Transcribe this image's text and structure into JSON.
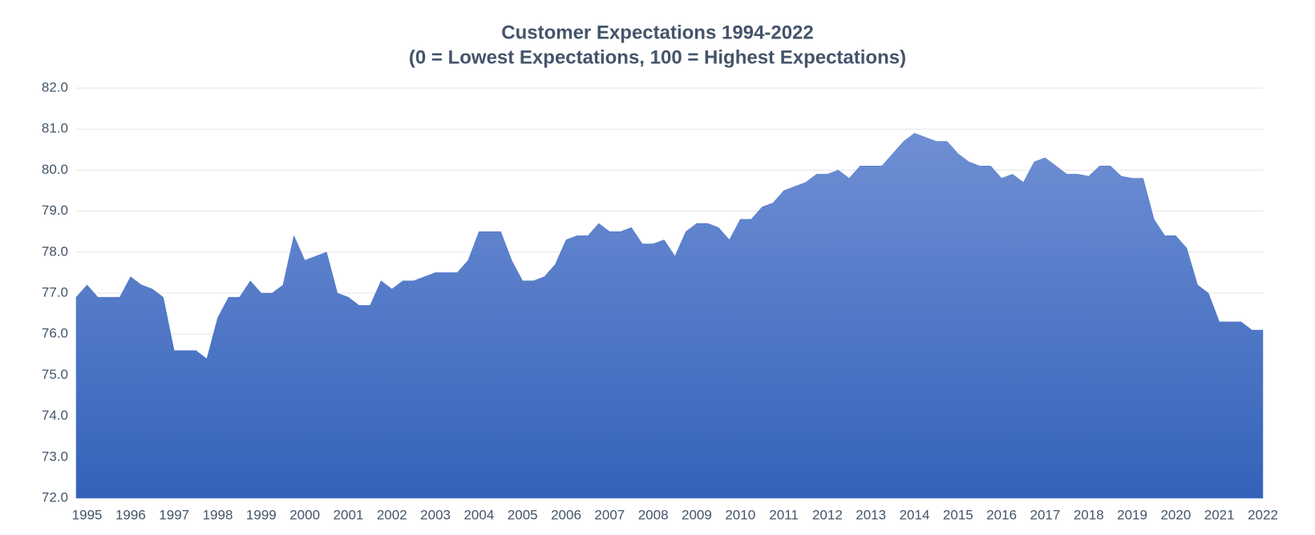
{
  "chart_data": {
    "type": "area",
    "title": "Customer Expectations 1994-2022",
    "subtitle": "(0 = Lowest Expectations, 100 = Highest Expectations)",
    "x": [
      1994.75,
      1995,
      1995.25,
      1995.5,
      1995.75,
      1996,
      1996.25,
      1996.5,
      1996.75,
      1997,
      1997.25,
      1997.5,
      1997.75,
      1998,
      1998.25,
      1998.5,
      1998.75,
      1999,
      1999.25,
      1999.5,
      1999.75,
      2000,
      2000.25,
      2000.5,
      2000.75,
      2001,
      2001.25,
      2001.5,
      2001.75,
      2002,
      2002.25,
      2002.5,
      2002.75,
      2003,
      2003.25,
      2003.5,
      2003.75,
      2004,
      2004.25,
      2004.5,
      2004.75,
      2005,
      2005.25,
      2005.5,
      2005.75,
      2006,
      2006.25,
      2006.5,
      2006.75,
      2007,
      2007.25,
      2007.5,
      2007.75,
      2008,
      2008.25,
      2008.5,
      2008.75,
      2009,
      2009.25,
      2009.5,
      2009.75,
      2010,
      2010.25,
      2010.5,
      2010.75,
      2011,
      2011.25,
      2011.5,
      2011.75,
      2012,
      2012.25,
      2012.5,
      2012.75,
      2013,
      2013.25,
      2013.5,
      2013.75,
      2014,
      2014.25,
      2014.5,
      2014.75,
      2015,
      2015.25,
      2015.5,
      2015.75,
      2016,
      2016.25,
      2016.5,
      2016.75,
      2017,
      2017.25,
      2017.5,
      2017.75,
      2018,
      2018.25,
      2018.5,
      2018.75,
      2019,
      2019.25,
      2019.5,
      2019.75,
      2020,
      2020.25,
      2020.5,
      2020.75,
      2021,
      2021.25,
      2021.5,
      2021.75,
      2022
    ],
    "values": [
      76.9,
      77.2,
      76.9,
      76.9,
      76.9,
      77.4,
      77.2,
      77.1,
      76.9,
      75.6,
      75.6,
      75.6,
      75.4,
      76.4,
      76.9,
      76.9,
      77.3,
      77.0,
      77.0,
      77.2,
      78.4,
      77.8,
      77.9,
      78.0,
      77.0,
      76.9,
      76.7,
      76.7,
      77.3,
      77.1,
      77.3,
      77.3,
      77.4,
      77.5,
      77.5,
      77.5,
      77.8,
      78.5,
      78.5,
      78.5,
      77.8,
      77.3,
      77.3,
      77.4,
      77.7,
      78.3,
      78.4,
      78.4,
      78.7,
      78.5,
      78.5,
      78.6,
      78.2,
      78.2,
      78.3,
      77.9,
      78.5,
      78.7,
      78.7,
      78.6,
      78.3,
      78.8,
      78.8,
      79.1,
      79.2,
      79.5,
      79.6,
      79.7,
      79.9,
      79.9,
      80.0,
      79.8,
      80.1,
      80.1,
      80.1,
      80.4,
      80.7,
      80.9,
      80.8,
      80.7,
      80.7,
      80.4,
      80.2,
      80.1,
      80.1,
      79.8,
      79.9,
      79.7,
      80.2,
      80.3,
      80.1,
      79.9,
      79.9,
      79.85,
      80.1,
      80.1,
      79.85,
      79.8,
      79.8,
      78.8,
      78.4,
      78.4,
      78.1,
      77.2,
      77.0,
      76.3,
      76.3,
      76.3,
      76.1,
      76.1
    ],
    "color": "#4472c4",
    "xlim": [
      1994.75,
      2022
    ],
    "xticks": [
      1995,
      1996,
      1997,
      1998,
      1999,
      2000,
      2001,
      2002,
      2003,
      2004,
      2005,
      2006,
      2007,
      2008,
      2009,
      2010,
      2011,
      2012,
      2013,
      2014,
      2015,
      2016,
      2017,
      2018,
      2019,
      2020,
      2021,
      2022
    ],
    "ylim": [
      72,
      82
    ],
    "yticks": [
      {
        "value": 72,
        "label": "72.0"
      },
      {
        "value": 73,
        "label": "73.0"
      },
      {
        "value": 74,
        "label": "74.0"
      },
      {
        "value": 75,
        "label": "75.0"
      },
      {
        "value": 76,
        "label": "76.0"
      },
      {
        "value": 77,
        "label": "77.0"
      },
      {
        "value": 78,
        "label": "78.0"
      },
      {
        "value": 79,
        "label": "79.0"
      },
      {
        "value": 80,
        "label": "80.0"
      },
      {
        "value": 81,
        "label": "81.0"
      },
      {
        "value": 82,
        "label": "82.0"
      }
    ],
    "grid": true
  }
}
